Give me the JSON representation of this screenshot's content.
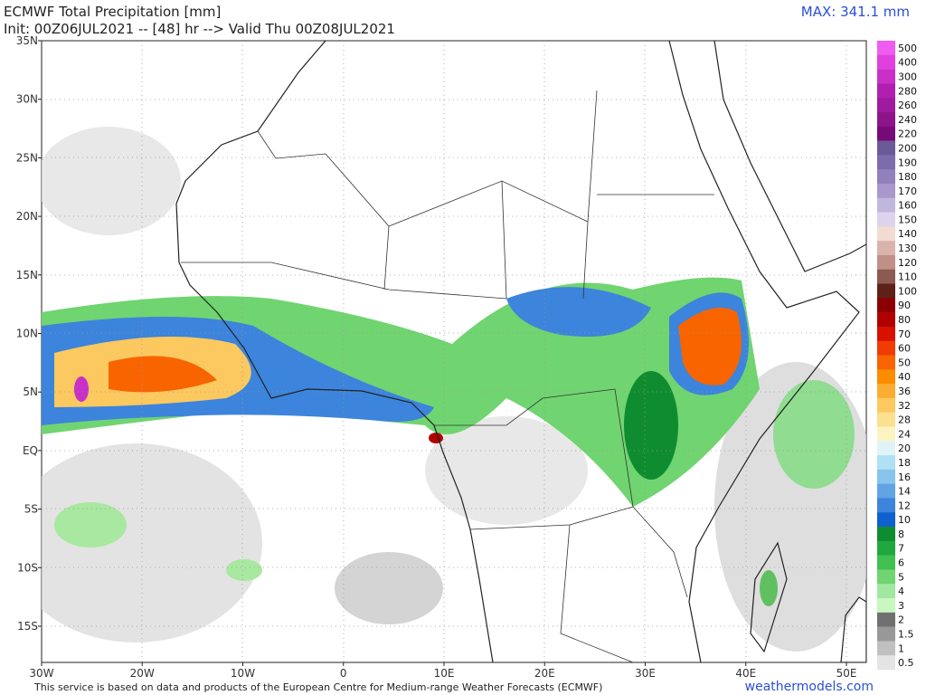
{
  "header": {
    "title": "ECMWF Total Precipitation [mm]",
    "subtitle": "Init: 00Z06JUL2021 -- [48] hr --> Valid Thu 00Z08JUL2021",
    "max": "MAX: 341.1 mm"
  },
  "axes": {
    "lat_labels": [
      "35N",
      "30N",
      "25N",
      "20N",
      "15N",
      "10N",
      "5N",
      "EQ",
      "5S",
      "10S",
      "15S"
    ],
    "lon_labels": [
      "30W",
      "20W",
      "10W",
      "0",
      "10E",
      "20E",
      "30E",
      "40E",
      "50E"
    ]
  },
  "colorbar": [
    {
      "label": "500",
      "color": "#f05cf0"
    },
    {
      "label": "400",
      "color": "#e040e0"
    },
    {
      "label": "300",
      "color": "#c830c8"
    },
    {
      "label": "280",
      "color": "#b020b0"
    },
    {
      "label": "260",
      "color": "#a01a9e"
    },
    {
      "label": "240",
      "color": "#8c1488"
    },
    {
      "label": "220",
      "color": "#780a78"
    },
    {
      "label": "200",
      "color": "#6a5a98"
    },
    {
      "label": "190",
      "color": "#7c6cac"
    },
    {
      "label": "180",
      "color": "#9080bc"
    },
    {
      "label": "170",
      "color": "#a898cc"
    },
    {
      "label": "160",
      "color": "#c0b8dc"
    },
    {
      "label": "150",
      "color": "#dcd4ec"
    },
    {
      "label": "140",
      "color": "#f2dcd2"
    },
    {
      "label": "130",
      "color": "#dab4ac"
    },
    {
      "label": "120",
      "color": "#c09088"
    },
    {
      "label": "110",
      "color": "#8c5a50"
    },
    {
      "label": "100",
      "color": "#5c2218"
    },
    {
      "label": "90",
      "color": "#8b0000"
    },
    {
      "label": "80",
      "color": "#b00000"
    },
    {
      "label": "70",
      "color": "#d81000"
    },
    {
      "label": "60",
      "color": "#f03c00"
    },
    {
      "label": "50",
      "color": "#f86400"
    },
    {
      "label": "40",
      "color": "#fc8c00"
    },
    {
      "label": "36",
      "color": "#fcac30"
    },
    {
      "label": "32",
      "color": "#fcc860"
    },
    {
      "label": "28",
      "color": "#fce090"
    },
    {
      "label": "24",
      "color": "#fcf4c0"
    },
    {
      "label": "20",
      "color": "#e0f4f8"
    },
    {
      "label": "18",
      "color": "#b0e0f4"
    },
    {
      "label": "16",
      "color": "#88c4ec"
    },
    {
      "label": "14",
      "color": "#60a4e4"
    },
    {
      "label": "12",
      "color": "#3c84dc"
    },
    {
      "label": "10",
      "color": "#1060d0"
    },
    {
      "label": "8",
      "color": "#108c30"
    },
    {
      "label": "7",
      "color": "#20a840"
    },
    {
      "label": "6",
      "color": "#40c050"
    },
    {
      "label": "5",
      "color": "#70d470"
    },
    {
      "label": "4",
      "color": "#a0e8a0"
    },
    {
      "label": "3",
      "color": "#c8f8c0"
    },
    {
      "label": "2",
      "color": "#707070"
    },
    {
      "label": "1.5",
      "color": "#989898"
    },
    {
      "label": "1",
      "color": "#c0c0c0"
    },
    {
      "label": "0.5",
      "color": "#e4e4e4"
    }
  ],
  "footer": {
    "credit": "This service is based on data and products of the European Centre for Medium-range Weather Forecasts (ECMWF)",
    "site": "weathermodels.com"
  }
}
